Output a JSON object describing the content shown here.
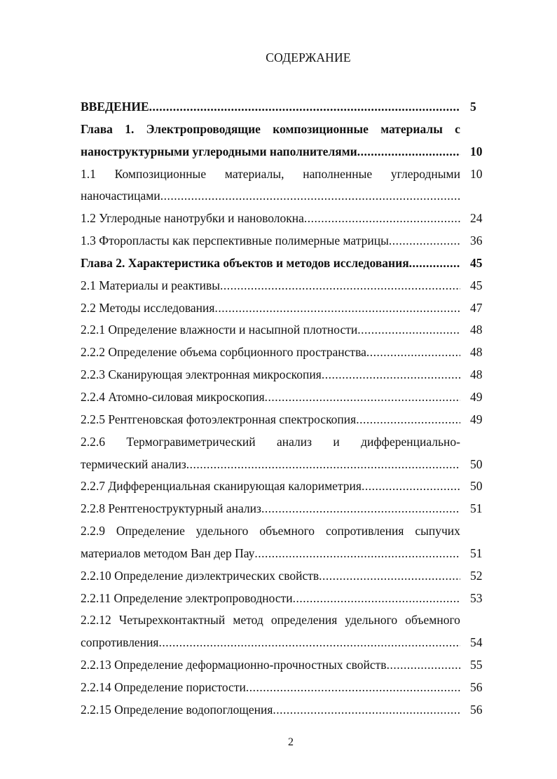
{
  "title": "СОДЕРЖАНИЕ",
  "page_number": "2",
  "entries": [
    {
      "text": "ВВЕДЕНИЕ",
      "page": "5",
      "bold": true
    },
    {
      "line1": "Глава 1. Электропроводящие композиционные материалы с",
      "text": "наноструктурными углеродными наполнителями",
      "page": "10",
      "bold": true
    },
    {
      "line1": "1.1 Композиционные материалы, наполненные углеродными",
      "text": "наночастицами",
      "page": "10",
      "page_on_first_line": true
    },
    {
      "text": "1.2 Углеродные нанотрубки и нановолокна",
      "page": "24"
    },
    {
      "text": "1.3 Фторопласты как перспективные полимерные матрицы",
      "page": "36"
    },
    {
      "text": "Глава 2. Характеристика объектов и методов исследования",
      "page": "45",
      "bold": true
    },
    {
      "text": "2.1 Материалы и реактивы",
      "page": "45"
    },
    {
      "text": "2.2 Методы исследования",
      "page": "47"
    },
    {
      "text": "2.2.1 Определение влажности и насыпной плотности",
      "page": "48"
    },
    {
      "text": "2.2.2 Определение объема сорбционного пространства",
      "page": "48"
    },
    {
      "text": "2.2.3 Сканирующая электронная микроскопия",
      "page": "48"
    },
    {
      "text": "2.2.4 Атомно-силовая микроскопия",
      "page": "49"
    },
    {
      "text": "2.2.5 Рентгеновская фотоэлектронная спектроскопия",
      "page": "49"
    },
    {
      "line1": "2.2.6 Термогравиметрический анализ и дифференциально-",
      "text": "термический анализ",
      "page": "50"
    },
    {
      "text": "2.2.7 Дифференциальная сканирующая калориметрия",
      "page": "50"
    },
    {
      "text": "2.2.8 Рентгеноструктурный анализ",
      "page": "51"
    },
    {
      "line1": "2.2.9 Определение удельного объемного сопротивления сыпучих",
      "text": "материалов методом Ван дер Пау",
      "page": "51"
    },
    {
      "text": "2.2.10 Определение диэлектрических свойств",
      "page": "52"
    },
    {
      "text": "2.2.11 Определение электропроводности",
      "page": "53"
    },
    {
      "line1": "2.2.12 Четырехконтактный метод определения удельного объемного",
      "text": "сопротивления",
      "page": "54"
    },
    {
      "text": "2.2.13 Определение деформационно-прочностных свойств",
      "page": "55"
    },
    {
      "text": "2.2.14 Определение пористости",
      "page": "56"
    },
    {
      "text": "2.2.15 Определение водопоглощения",
      "page": "56"
    }
  ]
}
